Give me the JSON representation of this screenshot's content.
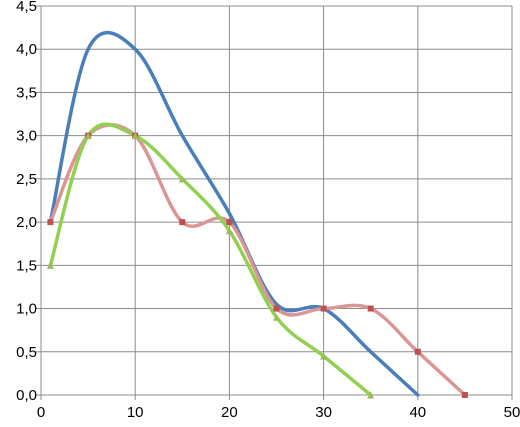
{
  "chart_data": {
    "type": "line",
    "smooth": true,
    "xlim": [
      0,
      50
    ],
    "ylim": [
      0,
      4.5
    ],
    "x_ticks": [
      "0",
      "10",
      "20",
      "30",
      "40",
      "50"
    ],
    "y_ticks": [
      "0,0",
      "0,5",
      "1,0",
      "1,5",
      "2,0",
      "2,5",
      "3,0",
      "3,5",
      "4,0",
      "4,5"
    ],
    "grid": true,
    "legend": "none",
    "series": [
      {
        "color": "#4a7ebb",
        "marker": "none",
        "x": [
          1,
          5,
          10,
          15,
          20,
          25,
          30,
          35,
          40
        ],
        "y": [
          2.0,
          4.0,
          4.0,
          3.0,
          2.1,
          1.05,
          1.0,
          0.5,
          0.0
        ]
      },
      {
        "color": "#d99694",
        "marker": "square",
        "marker_color": "#c0504d",
        "x": [
          1,
          5,
          10,
          15,
          20,
          25,
          30,
          35,
          40,
          45
        ],
        "y": [
          2.0,
          3.0,
          3.0,
          2.0,
          2.0,
          1.0,
          1.0,
          1.0,
          0.5,
          0.0
        ]
      },
      {
        "color": "#92d050",
        "marker": "triangle",
        "marker_color": "#9bbb59",
        "x": [
          1,
          5,
          10,
          15,
          20,
          25,
          30,
          35
        ],
        "y": [
          1.5,
          3.0,
          3.0,
          2.5,
          1.9,
          0.9,
          0.45,
          0.0
        ]
      }
    ]
  }
}
